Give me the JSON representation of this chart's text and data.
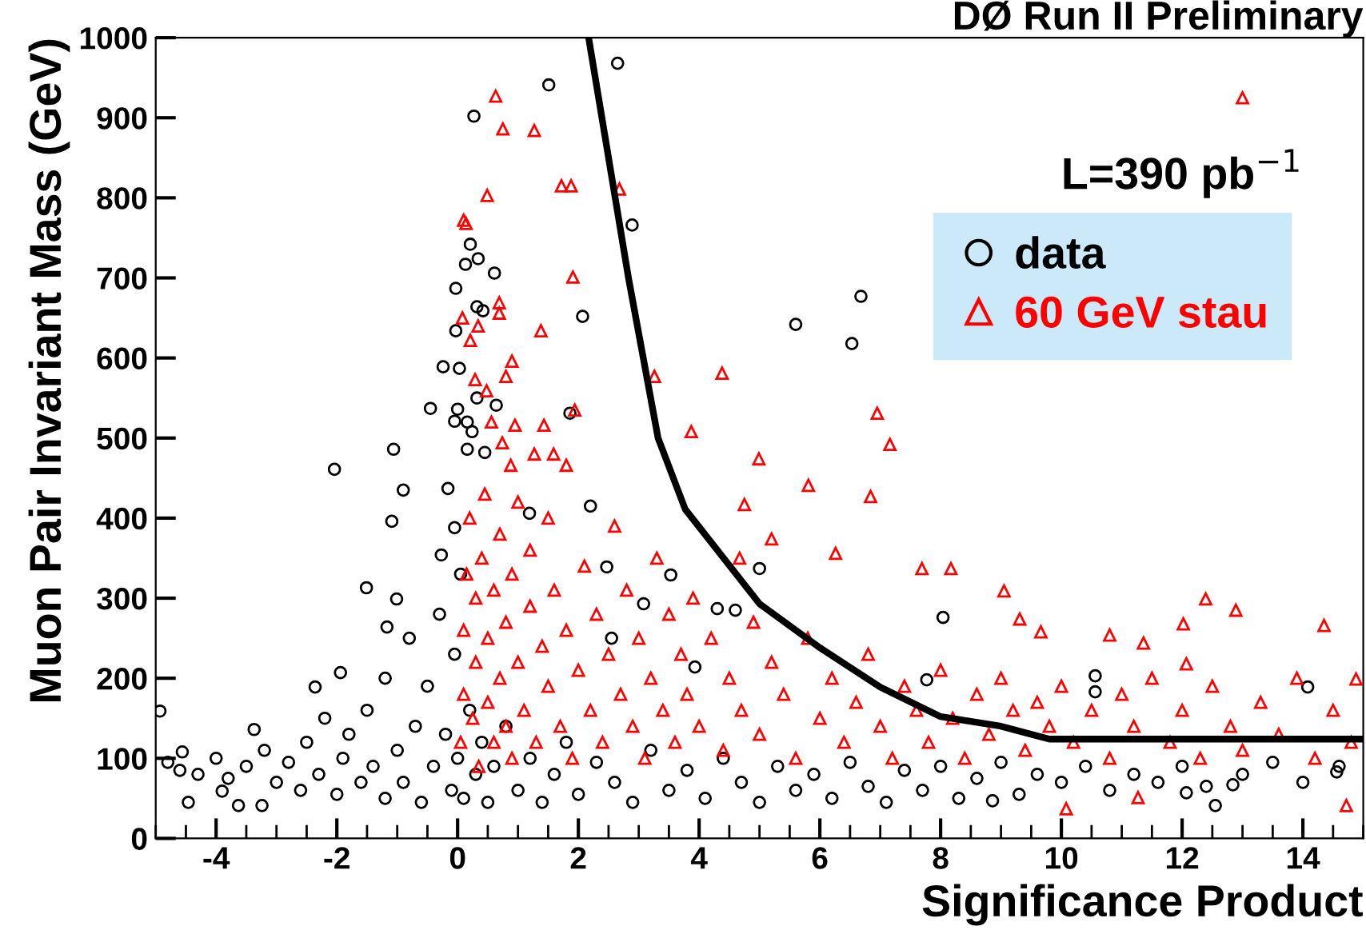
{
  "chart_data": {
    "type": "scatter",
    "title": "DØ Run II Preliminary",
    "xlabel": "Significance Product",
    "ylabel": "Muon Pair Invariant Mass (GeV)",
    "xlim": [
      -5,
      15
    ],
    "xticks": [
      -4,
      -2,
      0,
      2,
      4,
      6,
      8,
      10,
      12,
      14
    ],
    "ylim": [
      0,
      1000
    ],
    "yticks": [
      0,
      100,
      200,
      300,
      400,
      500,
      600,
      700,
      800,
      900,
      1000
    ],
    "legend": "top right",
    "annotations": [
      "L=390 pb$^{−1}$"
    ],
    "series": [
      {
        "name": "data",
        "marker": "circle",
        "color": "#000000",
        "x": [
          2.65,
          1.51,
          0.27,
          2.89,
          0.21,
          0.34,
          0.13,
          0.61,
          -0.03,
          0.32,
          0.42,
          2.07,
          -0.03,
          -0.24,
          0.03,
          0.32,
          0.64,
          -0.45,
          0.0,
          1.86,
          -0.05,
          0.16,
          0.24,
          -1.06,
          0.16,
          -2.04,
          0.45,
          6.68,
          5.6,
          6.53,
          -4.93,
          -4.56,
          -4.46,
          -3.9,
          -3.63,
          -3.24,
          -3.37,
          -2.36,
          -1.94,
          -1.51,
          -1.09,
          -0.9,
          -1.01,
          -1.17,
          -0.27,
          -0.16,
          -0.05,
          1.19,
          2.2,
          2.47,
          3.08,
          2.55,
          3.53,
          5.0,
          4.3,
          4.6,
          3.93,
          8.04,
          7.77,
          10.56,
          14.08,
          10.56,
          8.86,
          12.55,
          12.84,
          12.07,
          14.56,
          -4.8,
          -4.6,
          -4.3,
          -4.0,
          -3.8,
          -3.5,
          -3.2,
          -3.0,
          -2.8,
          -2.6,
          -2.5,
          -2.3,
          -2.2,
          -2.0,
          -1.9,
          -1.8,
          -1.6,
          -1.5,
          -1.4,
          -1.2,
          -1.2,
          -1.0,
          -0.9,
          -0.8,
          -0.7,
          -0.6,
          -0.5,
          -0.4,
          -0.3,
          -0.2,
          -0.1,
          -0.05,
          0.0,
          0.05,
          0.1,
          0.2,
          0.3,
          0.4,
          0.5,
          0.6,
          0.8,
          1.0,
          1.2,
          1.4,
          1.6,
          1.8,
          2.0,
          2.3,
          2.6,
          2.9,
          3.2,
          3.5,
          3.8,
          4.1,
          4.4,
          4.7,
          5.0,
          5.3,
          5.6,
          5.9,
          6.2,
          6.5,
          6.8,
          7.1,
          7.4,
          7.7,
          8.0,
          8.3,
          8.6,
          9.0,
          9.3,
          9.6,
          10.0,
          10.4,
          10.8,
          11.2,
          11.6,
          12.0,
          12.4,
          13.0,
          13.5,
          14.0,
          14.6
        ],
        "values": [
          968,
          941,
          902,
          766,
          742,
          724,
          717,
          706,
          687,
          664,
          659,
          652,
          634,
          589,
          587,
          550,
          541,
          537,
          536,
          531,
          521,
          520,
          508,
          486,
          486,
          461,
          482,
          677,
          642,
          618,
          159,
          108,
          45,
          59,
          41,
          41,
          136,
          189,
          207,
          313,
          396,
          435,
          299,
          264,
          354,
          437,
          388,
          406,
          415,
          339,
          293,
          250,
          329,
          337,
          287,
          285,
          214,
          276,
          198,
          203,
          189,
          183,
          47,
          41,
          67,
          57,
          83,
          95,
          85,
          80,
          100,
          75,
          90,
          110,
          70,
          95,
          60,
          120,
          80,
          150,
          55,
          100,
          130,
          70,
          160,
          90,
          50,
          200,
          110,
          70,
          250,
          140,
          45,
          190,
          90,
          280,
          130,
          60,
          230,
          100,
          330,
          50,
          160,
          80,
          120,
          45,
          90,
          140,
          60,
          100,
          45,
          80,
          120,
          55,
          95,
          70,
          45,
          110,
          60,
          85,
          50,
          100,
          70,
          45,
          90,
          60,
          80,
          50,
          95,
          65,
          45,
          85,
          60,
          90,
          50,
          75,
          95,
          55,
          80,
          70,
          90,
          60,
          80,
          70,
          90,
          65,
          80,
          95,
          70,
          90
        ]
      },
      {
        "name": "60 GeV stau",
        "marker": "triangle",
        "color": "#ff0000",
        "x": [
          0.63,
          0.75,
          1.27,
          1.72,
          1.88,
          2.68,
          0.49,
          0.1,
          0.14,
          1.91,
          0.69,
          0.69,
          0.08,
          0.34,
          1.38,
          0.21,
          0.9,
          3.26,
          0.8,
          0.29,
          0.48,
          1.43,
          1.94,
          0.95,
          0.56,
          0.74,
          1.27,
          1.59,
          1.8,
          0.88,
          13.0,
          4.38,
          6.95,
          3.87,
          7.16,
          4.99,
          5.81,
          6.84,
          4.75,
          5.2,
          6.26,
          4.67,
          7.69,
          8.17,
          9.05,
          12.39,
          12.89,
          14.35,
          12.02,
          9.31,
          9.66,
          10.8,
          11.36,
          12.07,
          14.88,
          10.08,
          14.72,
          11.27,
          0.05,
          0.1,
          0.1,
          0.15,
          0.2,
          0.25,
          0.3,
          0.3,
          0.35,
          0.4,
          0.45,
          0.5,
          0.5,
          0.6,
          0.6,
          0.7,
          0.7,
          0.8,
          0.8,
          0.9,
          0.9,
          1.0,
          1.0,
          1.1,
          1.2,
          1.2,
          1.3,
          1.4,
          1.5,
          1.5,
          1.6,
          1.7,
          1.8,
          1.9,
          2.0,
          2.1,
          2.2,
          2.3,
          2.4,
          2.5,
          2.6,
          2.7,
          2.8,
          2.9,
          3.0,
          3.1,
          3.2,
          3.3,
          3.4,
          3.5,
          3.6,
          3.7,
          3.8,
          3.9,
          4.0,
          4.2,
          4.4,
          4.5,
          4.7,
          4.9,
          5.0,
          5.2,
          5.4,
          5.6,
          5.8,
          6.0,
          6.2,
          6.4,
          6.6,
          6.8,
          7.0,
          7.2,
          7.4,
          7.6,
          7.8,
          8.0,
          8.2,
          8.4,
          8.6,
          8.8,
          9.0,
          9.2,
          9.4,
          9.6,
          9.8,
          10.0,
          10.2,
          10.5,
          10.8,
          11.0,
          11.2,
          11.5,
          11.8,
          12.0,
          12.3,
          12.5,
          12.8,
          13.0,
          13.3,
          13.6,
          13.9,
          14.2,
          14.5,
          14.8
        ],
        "values": [
          927,
          886,
          884,
          815,
          815,
          811,
          803,
          772,
          768,
          701,
          669,
          656,
          650,
          640,
          634,
          622,
          596,
          577,
          577,
          573,
          559,
          516,
          535,
          516,
          520,
          494,
          480,
          480,
          466,
          466,
          925,
          581,
          531,
          508,
          492,
          474,
          441,
          427,
          417,
          374,
          356,
          350,
          337,
          337,
          309,
          299,
          285,
          266,
          268,
          274,
          258,
          254,
          244,
          218,
          199,
          37,
          41,
          51,
          120,
          180,
          260,
          330,
          400,
          150,
          220,
          300,
          90,
          350,
          430,
          170,
          250,
          120,
          310,
          200,
          380,
          140,
          270,
          100,
          330,
          220,
          420,
          160,
          290,
          360,
          120,
          240,
          190,
          400,
          310,
          140,
          260,
          100,
          210,
          340,
          160,
          280,
          120,
          230,
          390,
          180,
          310,
          140,
          250,
          100,
          200,
          350,
          160,
          280,
          120,
          230,
          180,
          300,
          140,
          250,
          110,
          200,
          160,
          270,
          130,
          220,
          180,
          100,
          250,
          150,
          200,
          120,
          170,
          230,
          140,
          100,
          190,
          160,
          120,
          210,
          150,
          100,
          180,
          130,
          200,
          160,
          110,
          170,
          140,
          190,
          120,
          160,
          100,
          180,
          140,
          200,
          120,
          160,
          100,
          190,
          140,
          110,
          170,
          130,
          200,
          100,
          160,
          120
        ]
      },
      {
        "type": "line",
        "marker": "none",
        "color": "#000000",
        "x": [
          2.17,
          2.39,
          2.83,
          3.32,
          3.77,
          5.0,
          6.0,
          7.0,
          8.0,
          9.0,
          9.8,
          15.0
        ],
        "values": [
          1000,
          900,
          700,
          500,
          411,
          293,
          238,
          189,
          152,
          140,
          124,
          124
        ]
      }
    ]
  }
}
